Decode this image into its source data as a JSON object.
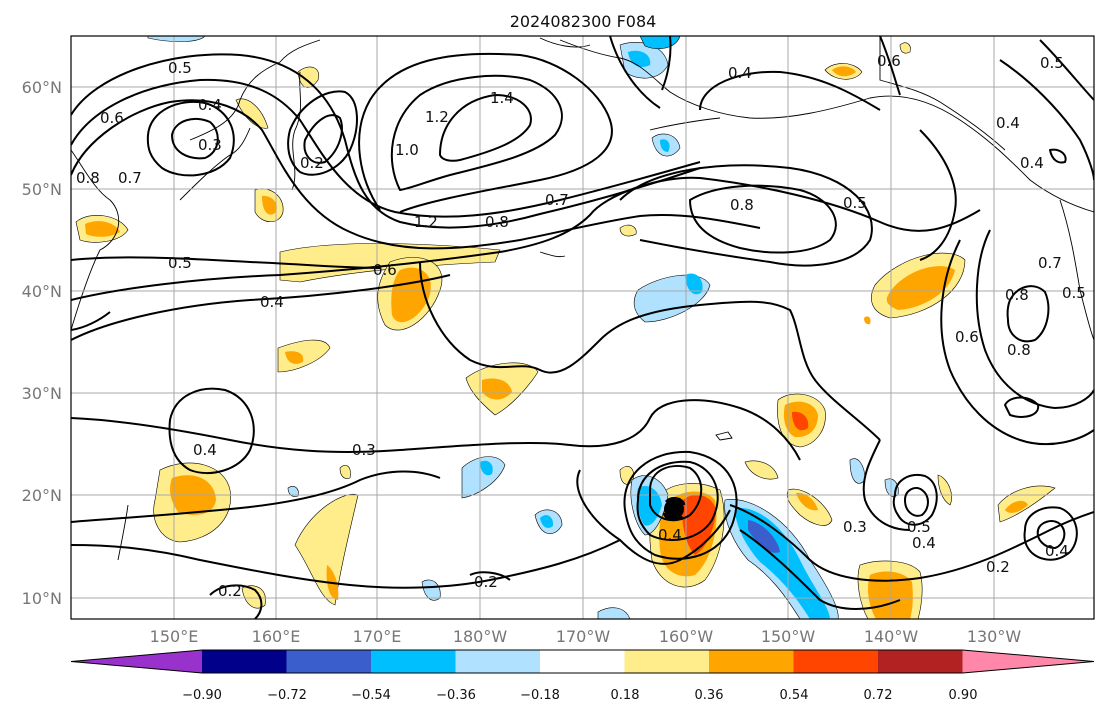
{
  "title": "2024082300 F084",
  "map": {
    "lon_labels": [
      "150°E",
      "160°E",
      "170°E",
      "180°W",
      "170°W",
      "160°W",
      "150°W",
      "140°W",
      "130°W"
    ],
    "lat_labels": [
      "60°N",
      "50°N",
      "40°N",
      "30°N",
      "20°N",
      "10°N"
    ]
  },
  "contour_labels": {
    "c05_nw": "0.5",
    "c04_nw": "0.4",
    "c03_nw": "0.3",
    "c02_nw": "0.2",
    "c06_w": "0.6",
    "c07_w": "0.7",
    "c08_w": "0.8",
    "c10": "1.0",
    "c12_n": "1.2",
    "c14": "1.4",
    "c12_s": "1.2",
    "c08_c": "0.8",
    "c07_c": "0.7",
    "c04_ne": "0.4",
    "c06_ne": "0.6",
    "c05_ne": "0.5",
    "c08_mid": "0.8",
    "c05_mid": "0.5",
    "c05_w": "0.5",
    "c06_c": "0.6",
    "c04_w": "0.4",
    "c04_e1": "0.4",
    "c04_e2": "0.4",
    "c07_e": "0.7",
    "c08_e1": "0.8",
    "c08_e2": "0.8",
    "c05_e": "0.5",
    "c06_e": "0.6",
    "c04_sw": "0.4",
    "c03_s": "0.3",
    "c02_sw": "0.2",
    "c02_s": "0.2",
    "c04_low": "0.4",
    "c03_se": "0.3",
    "c05_se": "0.5",
    "c04_se": "0.4",
    "c02_se": "0.2",
    "c04_far": "0.4"
  },
  "colorbar": {
    "ticks": [
      "−0.90",
      "−0.72",
      "−0.54",
      "−0.36",
      "−0.18",
      "0.18",
      "0.36",
      "0.54",
      "0.72",
      "0.90"
    ],
    "colors": [
      "#9932cc",
      "#00008b",
      "#3a5fcd",
      "#00bfff",
      "#b0e2ff",
      "#ffffff",
      "#ffec8b",
      "#ffa500",
      "#ff4500",
      "#b22222",
      "#ff88aa"
    ]
  }
}
